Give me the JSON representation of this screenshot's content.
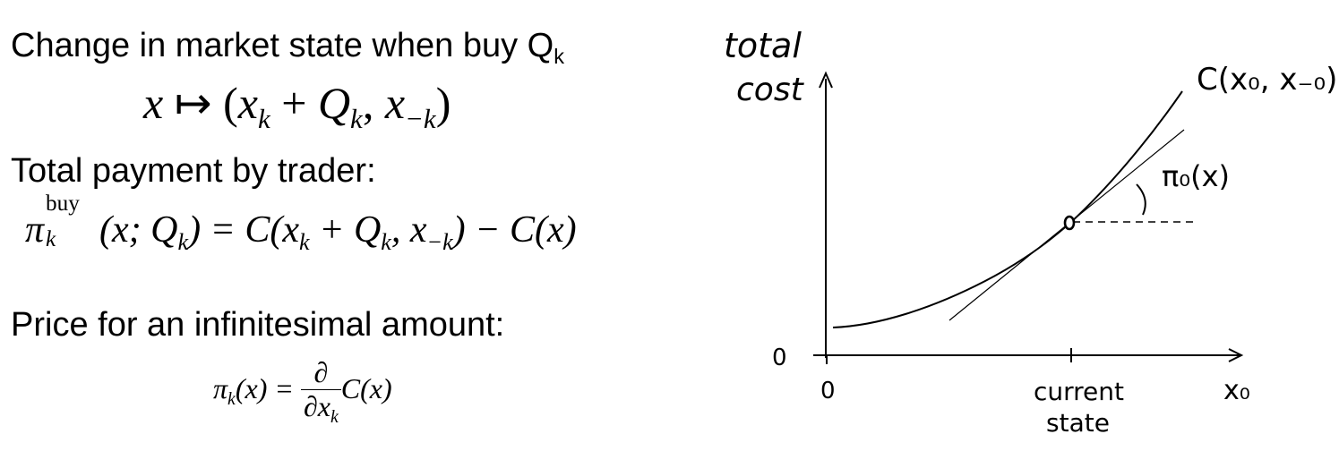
{
  "text": {
    "h1_main": "Change in market state when buy Q",
    "h1_sub": "k",
    "h2": "Total payment by trader:",
    "h3": "Price for an infinitesimal amount:"
  },
  "eq1": {
    "lhs": "x",
    "arrow": "↦",
    "open": "(",
    "x": "x",
    "k": "k",
    "plus": "+",
    "Q": "Q",
    "Qk": "k",
    "comma": ",",
    "x2": "x",
    "mk": "−k",
    "close": ")"
  },
  "eq2": {
    "pi": "π",
    "sup": "buy",
    "sub": "k",
    "args": "(x; Q",
    "args_sub": "k",
    "eq": ") = C(x",
    "xk_sub": "k",
    "plus": " + Q",
    "Qk_sub": "k",
    "comma": ", x",
    "mk_sub": "−k",
    "rest": ") − C(x)"
  },
  "eq3": {
    "pi": "π",
    "sub": "k",
    "lhs_rest": "(x) =",
    "num": "∂",
    "den": "∂x",
    "den_sub": "k",
    "rhs": "C(x)"
  },
  "graph": {
    "ylabel_line1": "total",
    "ylabel_line2": "cost",
    "curve_label": "C(x₀, x₋₀)",
    "tangent_label": "π₀(x)",
    "y_zero": "0",
    "x_zero": "0",
    "xtick_line1": "current",
    "xtick_line2": "state",
    "xlabel": "x₀",
    "ink": "#000000"
  }
}
